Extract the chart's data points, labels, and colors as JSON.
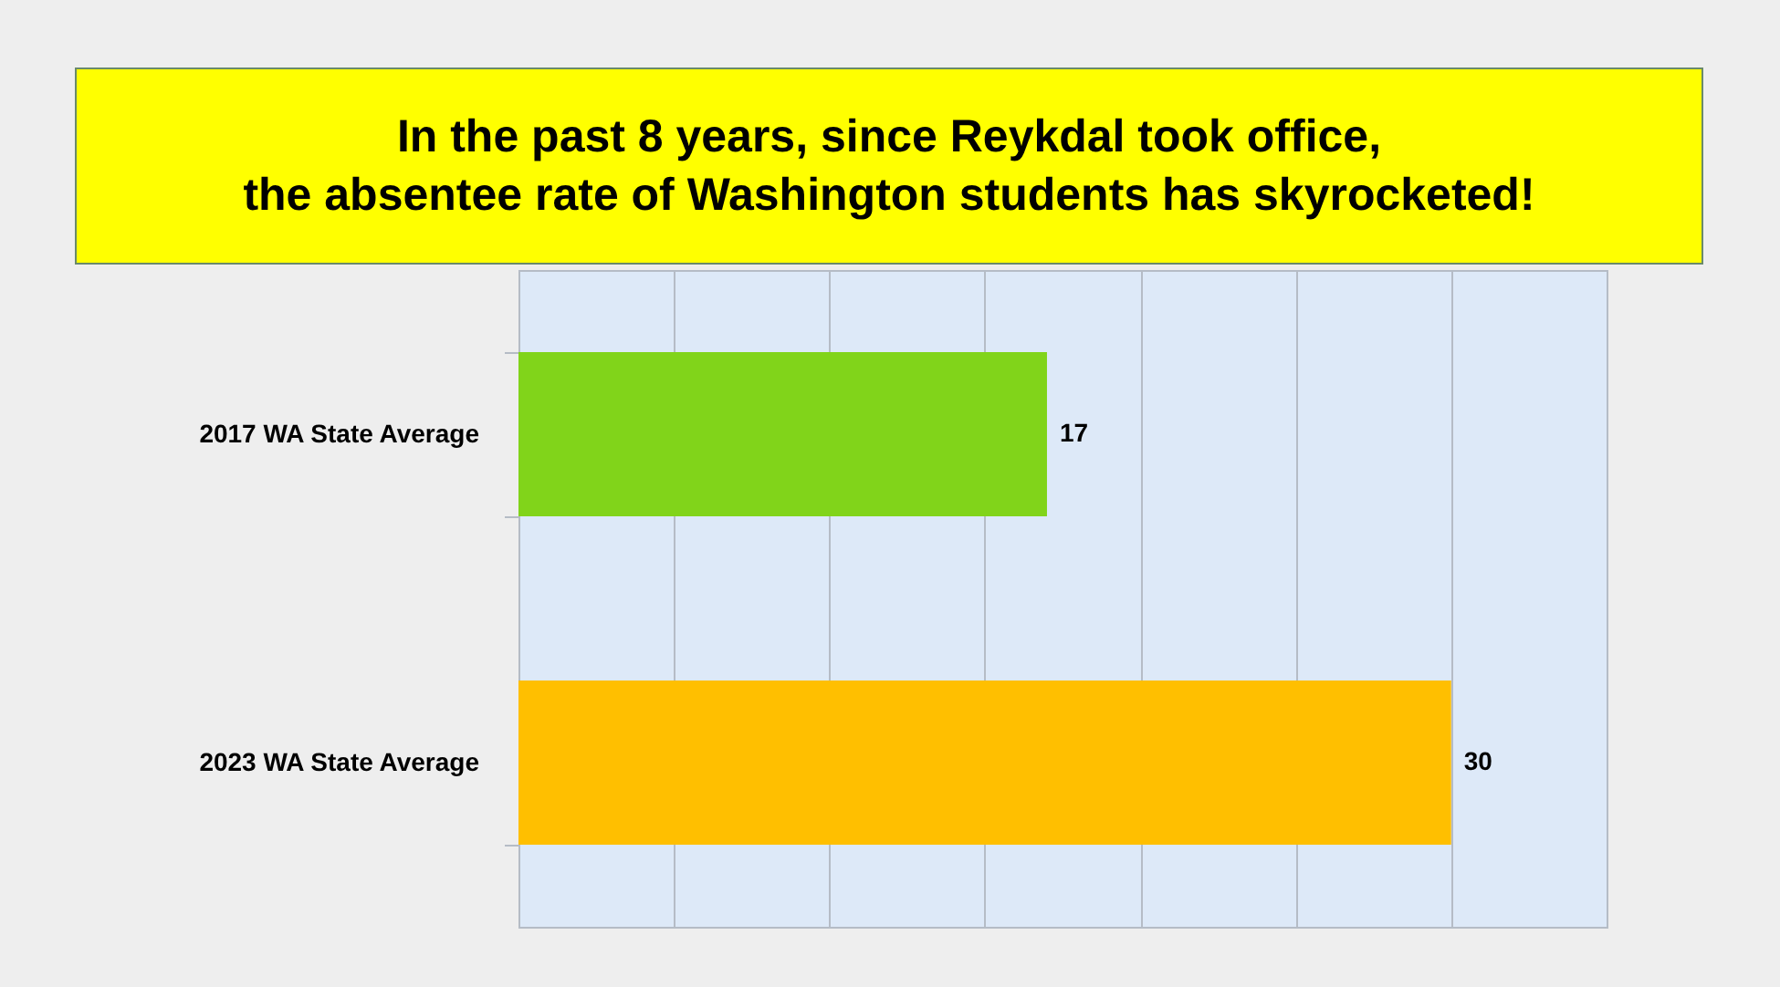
{
  "chart_data": {
    "type": "bar",
    "orientation": "horizontal",
    "title": "In the past 8 years, since Reykdal took office,\nthe absentee rate of Washington students has skyrocketed!",
    "categories": [
      "2017 WA State Average",
      "2023 WA State Average"
    ],
    "values": [
      17,
      30
    ],
    "colors": [
      "#81d41a",
      "#ffbf00"
    ],
    "xlim": [
      0,
      35
    ],
    "xticks": [
      {
        "value": 0,
        "label": null
      },
      {
        "value": 5,
        "label": null
      },
      {
        "value": 10,
        "label": null
      },
      {
        "value": 15,
        "label": null
      },
      {
        "value": 20,
        "label": null
      },
      {
        "value": 25,
        "label": null
      },
      {
        "value": 30,
        "label": null
      },
      {
        "value": 35,
        "label": null
      }
    ],
    "grid": "x",
    "tick_labels": "y",
    "data_labels": true
  }
}
